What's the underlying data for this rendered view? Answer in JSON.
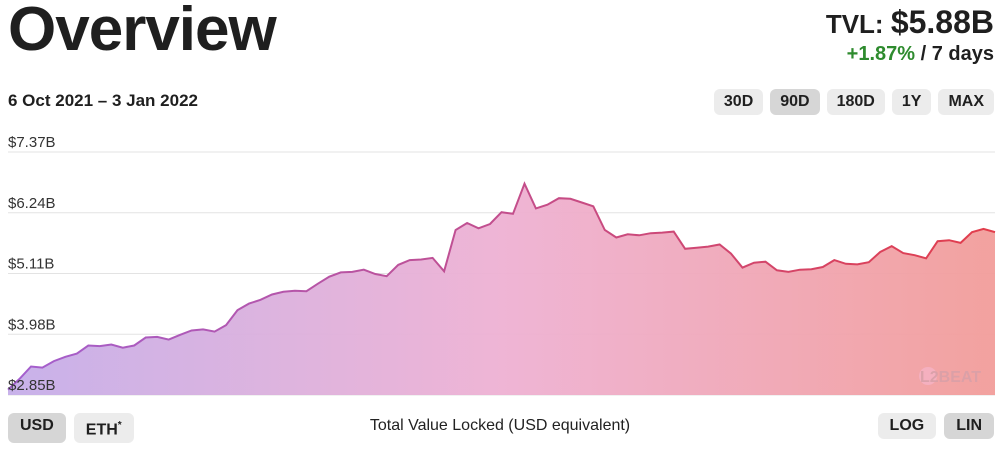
{
  "header": {
    "title": "Overview",
    "tvl_label": "TVL:",
    "tvl_value": "$5.88B",
    "change_pct": "+1.87%",
    "change_period": "/ 7 days"
  },
  "date_range": "6 Oct 2021 – 3 Jan 2022",
  "range_buttons": [
    {
      "label": "30D",
      "active": false
    },
    {
      "label": "90D",
      "active": true
    },
    {
      "label": "180D",
      "active": false
    },
    {
      "label": "1Y",
      "active": false
    },
    {
      "label": "MAX",
      "active": false
    }
  ],
  "currency_buttons": [
    {
      "label": "USD",
      "active": true
    },
    {
      "label": "ETH",
      "superscript": "*",
      "active": false
    }
  ],
  "scale_buttons": [
    {
      "label": "LOG",
      "active": false
    },
    {
      "label": "LIN",
      "active": true
    }
  ],
  "footer_label": "Total Value Locked (USD equivalent)",
  "watermark": "L2BEAT",
  "colors": {
    "line_start": "#a35fcf",
    "line_end": "#e23d4b",
    "fill_start": "#c5aee9",
    "fill_mid": "#eeb1d3",
    "fill_end": "#f29d9a",
    "positive": "#2e8b2e",
    "grid": "#e3e3e3"
  },
  "chart_data": {
    "type": "area",
    "title": "",
    "xlabel": "Total Value Locked (USD equivalent)",
    "ylabel": "",
    "x_start": "6 Oct 2021",
    "x_end": "3 Jan 2022",
    "ylim": [
      2.85,
      7.37
    ],
    "yticks": [
      "$7.37B",
      "$6.24B",
      "$5.11B",
      "$3.98B",
      "$2.85B"
    ],
    "ytick_values": [
      7.37,
      6.24,
      5.11,
      3.98,
      2.85
    ],
    "grid": true,
    "series": [
      {
        "values": [
          2.95,
          3.15,
          3.38,
          3.36,
          3.48,
          3.56,
          3.62,
          3.77,
          3.76,
          3.79,
          3.73,
          3.77,
          3.92,
          3.93,
          3.88,
          3.97,
          4.05,
          4.07,
          4.03,
          4.15,
          4.43,
          4.55,
          4.62,
          4.72,
          4.77,
          4.79,
          4.78,
          4.92,
          5.05,
          5.13,
          5.14,
          5.18,
          5.1,
          5.06,
          5.27,
          5.36,
          5.37,
          5.4,
          5.15,
          5.92,
          6.05,
          5.95,
          6.03,
          6.25,
          6.22,
          6.78,
          6.32,
          6.39,
          6.51,
          6.5,
          6.43,
          6.36,
          5.92,
          5.78,
          5.84,
          5.82,
          5.86,
          5.87,
          5.89,
          5.57,
          5.59,
          5.61,
          5.65,
          5.48,
          5.22,
          5.31,
          5.33,
          5.17,
          5.14,
          5.18,
          5.19,
          5.23,
          5.36,
          5.29,
          5.28,
          5.32,
          5.51,
          5.62,
          5.49,
          5.45,
          5.39,
          5.71,
          5.73,
          5.68,
          5.88,
          5.94,
          5.88
        ]
      }
    ]
  }
}
